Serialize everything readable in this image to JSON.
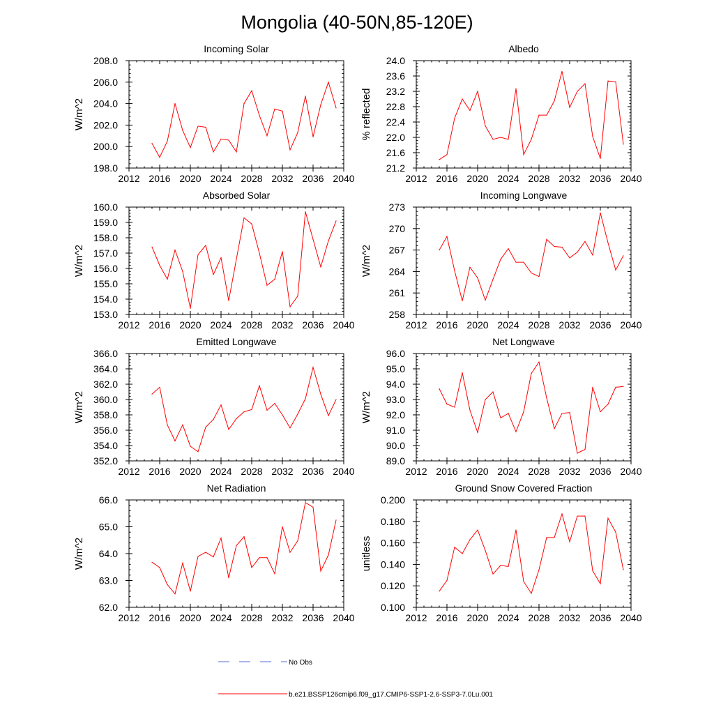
{
  "title": "Mongolia (40-50N,85-120E)",
  "colors": {
    "series": "#ff0000",
    "obs": "#5a6fd1",
    "axis": "#000000"
  },
  "legend": {
    "obs_label": "No Obs",
    "series_label": "b.e21.BSSP126cmip6.f09_g17.CMIP6-SSP1-2.6-SSP3-7.0Lu.001"
  },
  "chart_data": [
    {
      "type": "line",
      "title": "Incoming Solar",
      "ylabel": "W/m^2",
      "xlim": [
        2012,
        2040
      ],
      "xticks": [
        2012,
        2016,
        2020,
        2024,
        2028,
        2032,
        2036,
        2040
      ],
      "ylim": [
        198,
        208
      ],
      "yticks": [
        "198.0",
        "200.0",
        "202.0",
        "204.0",
        "206.0",
        "208.0"
      ],
      "x": [
        2015,
        2016,
        2017,
        2018,
        2019,
        2020,
        2021,
        2022,
        2023,
        2024,
        2025,
        2026,
        2027,
        2028,
        2029,
        2030,
        2031,
        2032,
        2033,
        2034,
        2035,
        2036,
        2037,
        2038,
        2039
      ],
      "values": [
        200.3,
        199.0,
        200.5,
        204.0,
        201.5,
        199.9,
        201.9,
        201.8,
        199.5,
        200.7,
        200.6,
        199.5,
        204.0,
        205.2,
        202.9,
        201.0,
        203.5,
        203.3,
        199.7,
        201.3,
        204.7,
        200.9,
        203.9,
        206.0,
        203.6
      ]
    },
    {
      "type": "line",
      "title": "Albedo",
      "ylabel": "% reflected",
      "xlim": [
        2012,
        2040
      ],
      "xticks": [
        2012,
        2016,
        2020,
        2024,
        2028,
        2032,
        2036,
        2040
      ],
      "ylim": [
        21.2,
        24.0
      ],
      "yticks": [
        "21.2",
        "21.6",
        "22.0",
        "22.4",
        "22.8",
        "23.2",
        "23.6",
        "24.0"
      ],
      "x": [
        2015,
        2016,
        2017,
        2018,
        2019,
        2020,
        2021,
        2022,
        2023,
        2024,
        2025,
        2026,
        2027,
        2028,
        2029,
        2030,
        2031,
        2032,
        2033,
        2034,
        2035,
        2036,
        2037,
        2038,
        2039
      ],
      "values": [
        21.42,
        21.55,
        22.5,
        23.0,
        22.7,
        23.2,
        22.3,
        21.95,
        22.0,
        21.95,
        23.27,
        21.55,
        21.95,
        22.58,
        22.58,
        22.95,
        23.72,
        22.78,
        23.2,
        23.4,
        22.02,
        21.45,
        23.47,
        23.45,
        21.82
      ]
    },
    {
      "type": "line",
      "title": "Absorbed Solar",
      "ylabel": "W/m^2",
      "xlim": [
        2012,
        2040
      ],
      "xticks": [
        2012,
        2016,
        2020,
        2024,
        2028,
        2032,
        2036,
        2040
      ],
      "ylim": [
        153,
        160
      ],
      "yticks": [
        "153.0",
        "154.0",
        "155.0",
        "156.0",
        "157.0",
        "158.0",
        "159.0",
        "160.0"
      ],
      "x": [
        2015,
        2016,
        2017,
        2018,
        2019,
        2020,
        2021,
        2022,
        2023,
        2024,
        2025,
        2026,
        2027,
        2028,
        2029,
        2030,
        2031,
        2032,
        2033,
        2034,
        2035,
        2036,
        2037,
        2038,
        2039
      ],
      "values": [
        157.4,
        156.2,
        155.3,
        157.2,
        155.8,
        153.4,
        156.9,
        157.5,
        155.6,
        156.7,
        153.9,
        156.6,
        159.3,
        158.9,
        157.0,
        154.9,
        155.3,
        157.1,
        153.5,
        154.2,
        159.7,
        157.9,
        156.1,
        157.8,
        159.1
      ]
    },
    {
      "type": "line",
      "title": "Incoming Longwave",
      "ylabel": "W/m^2",
      "xlim": [
        2012,
        2040
      ],
      "xticks": [
        2012,
        2016,
        2020,
        2024,
        2028,
        2032,
        2036,
        2040
      ],
      "ylim": [
        258,
        273
      ],
      "yticks": [
        "258",
        "261",
        "264",
        "267",
        "270",
        "273"
      ],
      "x": [
        2015,
        2016,
        2017,
        2018,
        2019,
        2020,
        2021,
        2022,
        2023,
        2024,
        2025,
        2026,
        2027,
        2028,
        2029,
        2030,
        2031,
        2032,
        2033,
        2034,
        2035,
        2036,
        2037,
        2038,
        2039
      ],
      "values": [
        267.0,
        268.9,
        264.1,
        259.9,
        264.6,
        263.1,
        260.0,
        262.9,
        265.7,
        267.2,
        265.3,
        265.3,
        263.8,
        263.3,
        268.5,
        267.5,
        267.4,
        265.9,
        266.7,
        268.2,
        266.3,
        272.2,
        268.0,
        264.2,
        266.2
      ]
    },
    {
      "type": "line",
      "title": "Emitted Longwave",
      "ylabel": "W/m^2",
      "xlim": [
        2012,
        2040
      ],
      "xticks": [
        2012,
        2016,
        2020,
        2024,
        2028,
        2032,
        2036,
        2040
      ],
      "ylim": [
        352,
        366
      ],
      "yticks": [
        "352.0",
        "354.0",
        "356.0",
        "358.0",
        "360.0",
        "362.0",
        "364.0",
        "366.0"
      ],
      "x": [
        2015,
        2016,
        2017,
        2018,
        2019,
        2020,
        2021,
        2022,
        2023,
        2024,
        2025,
        2026,
        2027,
        2028,
        2029,
        2030,
        2031,
        2032,
        2033,
        2034,
        2035,
        2036,
        2037,
        2038,
        2039
      ],
      "values": [
        360.7,
        361.6,
        356.7,
        354.6,
        356.7,
        353.9,
        353.2,
        356.4,
        357.4,
        359.3,
        356.1,
        357.5,
        358.4,
        358.7,
        361.8,
        358.6,
        359.5,
        358.0,
        356.3,
        358.1,
        360.1,
        364.2,
        360.7,
        357.9,
        360.0
      ]
    },
    {
      "type": "line",
      "title": "Net Longwave",
      "ylabel": "W/m^2",
      "xlim": [
        2012,
        2040
      ],
      "xticks": [
        2012,
        2016,
        2020,
        2024,
        2028,
        2032,
        2036,
        2040
      ],
      "ylim": [
        89,
        96
      ],
      "yticks": [
        "89.0",
        "90.0",
        "91.0",
        "92.0",
        "93.0",
        "94.0",
        "95.0",
        "96.0"
      ],
      "x": [
        2015,
        2016,
        2017,
        2018,
        2019,
        2020,
        2021,
        2022,
        2023,
        2024,
        2025,
        2026,
        2027,
        2028,
        2029,
        2030,
        2031,
        2032,
        2033,
        2034,
        2035,
        2036,
        2037,
        2038,
        2039
      ],
      "values": [
        93.7,
        92.7,
        92.5,
        94.75,
        92.3,
        90.85,
        93.0,
        93.5,
        91.8,
        92.1,
        90.9,
        92.2,
        94.7,
        95.45,
        93.1,
        91.1,
        92.1,
        92.15,
        89.5,
        89.75,
        93.8,
        92.2,
        92.7,
        93.8,
        93.85
      ]
    },
    {
      "type": "line",
      "title": "Net Radiation",
      "ylabel": "W/m^2",
      "xlim": [
        2012,
        2040
      ],
      "xticks": [
        2012,
        2016,
        2020,
        2024,
        2028,
        2032,
        2036,
        2040
      ],
      "ylim": [
        62,
        66
      ],
      "yticks": [
        "62.0",
        "63.0",
        "64.0",
        "65.0",
        "66.0"
      ],
      "x": [
        2015,
        2016,
        2017,
        2018,
        2019,
        2020,
        2021,
        2022,
        2023,
        2024,
        2025,
        2026,
        2027,
        2028,
        2029,
        2030,
        2031,
        2032,
        2033,
        2034,
        2035,
        2036,
        2037,
        2038,
        2039
      ],
      "values": [
        63.68,
        63.48,
        62.85,
        62.5,
        63.65,
        62.6,
        63.9,
        64.05,
        63.88,
        64.58,
        63.1,
        64.3,
        64.63,
        63.48,
        63.85,
        63.85,
        63.25,
        65.0,
        64.05,
        64.48,
        65.9,
        65.73,
        63.35,
        63.95,
        65.25
      ]
    },
    {
      "type": "line",
      "title": "Ground Snow Covered Fraction",
      "ylabel": "unitless",
      "xlim": [
        2012,
        2040
      ],
      "xticks": [
        2012,
        2016,
        2020,
        2024,
        2028,
        2032,
        2036,
        2040
      ],
      "ylim": [
        0.1,
        0.2
      ],
      "yticks": [
        "0.100",
        "0.120",
        "0.140",
        "0.160",
        "0.180",
        "0.200"
      ],
      "x": [
        2015,
        2016,
        2017,
        2018,
        2019,
        2020,
        2021,
        2022,
        2023,
        2024,
        2025,
        2026,
        2027,
        2028,
        2029,
        2030,
        2031,
        2032,
        2033,
        2034,
        2035,
        2036,
        2037,
        2038,
        2039
      ],
      "values": [
        0.115,
        0.125,
        0.156,
        0.15,
        0.163,
        0.172,
        0.153,
        0.131,
        0.139,
        0.138,
        0.172,
        0.124,
        0.113,
        0.135,
        0.165,
        0.165,
        0.187,
        0.161,
        0.185,
        0.185,
        0.134,
        0.122,
        0.183,
        0.17,
        0.135
      ]
    }
  ]
}
